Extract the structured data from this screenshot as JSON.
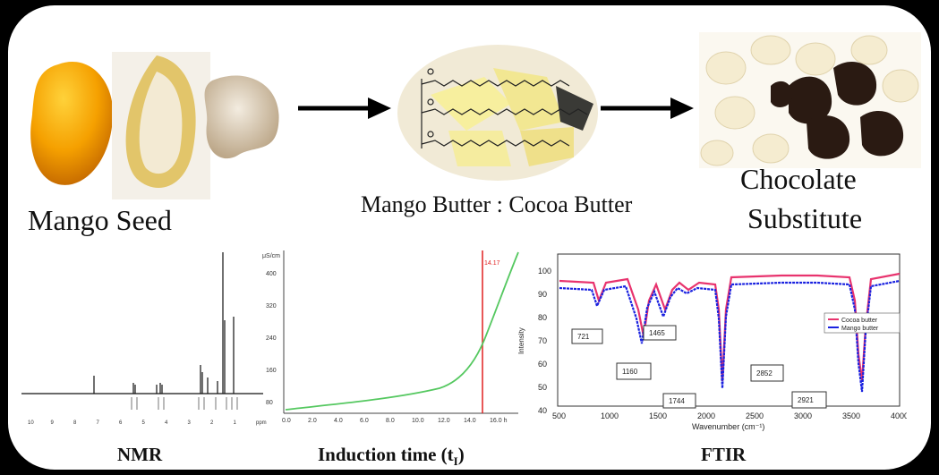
{
  "labels": {
    "mango_seed": "Mango Seed",
    "mango_cocoa": "Mango Butter : Cocoa Butter",
    "chocolate_line1": "Chocolate",
    "chocolate_line2": "Substitute"
  },
  "captions": {
    "nmr": "NMR",
    "induction": "Induction time (t",
    "induction_sub": "I",
    "induction_close": ")",
    "ftir": "FTIR"
  },
  "nmr": {
    "x_ticks": [
      "10",
      "9",
      "8",
      "7",
      "6",
      "5",
      "4",
      "3",
      "2",
      "1",
      "ppm"
    ]
  },
  "induction": {
    "y_unit": "μS/cm",
    "y_ticks": [
      "400",
      "320",
      "240",
      "160",
      "80"
    ],
    "x_ticks": [
      "0.0",
      "2.0",
      "4.0",
      "6.0",
      "8.0",
      "10.0",
      "12.0",
      "14.0",
      "16.0 h"
    ],
    "marker_label": "14.17"
  },
  "ftir": {
    "ylabel": "Intensity",
    "xlabel": "Wavenumber (cm⁻¹)",
    "y_ticks": [
      "100",
      "90",
      "80",
      "70",
      "60",
      "50",
      "40"
    ],
    "x_ticks": [
      "500",
      "1000",
      "1500",
      "2000",
      "2500",
      "3000",
      "3500",
      "4000"
    ],
    "legend": [
      "Cocoa butter",
      "Mango butter"
    ],
    "peaks": [
      "721",
      "1160",
      "1465",
      "1744",
      "2852",
      "2921"
    ],
    "colors": {
      "cocoa": "#e8336e",
      "mango": "#1a22e0"
    }
  }
}
